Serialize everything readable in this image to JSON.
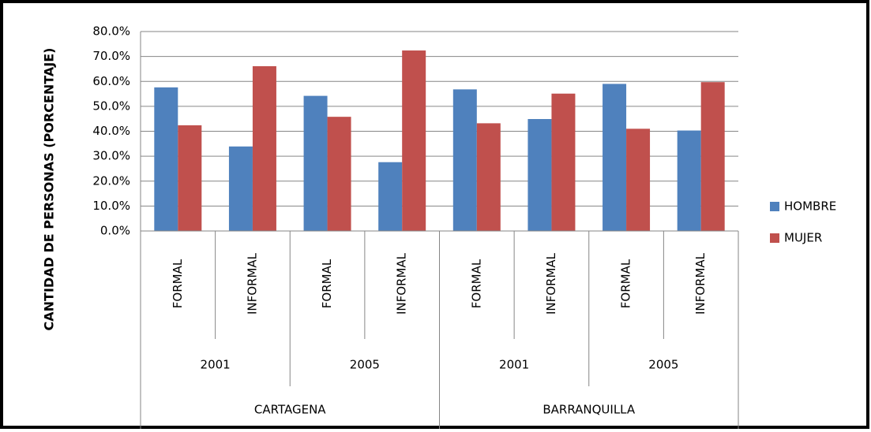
{
  "chart_data": {
    "type": "bar",
    "ylabel": "CANTIDAD DE PERSONAS (PORCENTAJE)",
    "categories": [
      "FORMAL",
      "INFORMAL",
      "FORMAL",
      "INFORMAL",
      "FORMAL",
      "INFORMAL",
      "FORMAL",
      "INFORMAL"
    ],
    "category_groups": [
      [
        "2001",
        "2005",
        "2001",
        "2005"
      ],
      [
        "CARTAGENA",
        "BARRANQUILLA"
      ]
    ],
    "series": [
      {
        "name": "HOMBRE",
        "color": "#4f81bd",
        "values": [
          57.6,
          33.9,
          54.2,
          27.6,
          56.8,
          44.9,
          59.0,
          40.3
        ]
      },
      {
        "name": "MUJER",
        "color": "#c0504d",
        "values": [
          42.4,
          66.1,
          45.8,
          72.4,
          43.2,
          55.1,
          41.0,
          59.7
        ]
      }
    ],
    "ylim": [
      0,
      80
    ],
    "yticks": [
      {
        "value": 0,
        "label": "0.0%"
      },
      {
        "value": 10,
        "label": "10.0%"
      },
      {
        "value": 20,
        "label": "20.0%"
      },
      {
        "value": 30,
        "label": "30.0%"
      },
      {
        "value": 40,
        "label": "40.0%"
      },
      {
        "value": 50,
        "label": "50.0%"
      },
      {
        "value": 60,
        "label": "60.0%"
      },
      {
        "value": 70,
        "label": "70.0%"
      },
      {
        "value": 80,
        "label": "80.0%"
      }
    ],
    "grid": true,
    "legend": "right"
  }
}
